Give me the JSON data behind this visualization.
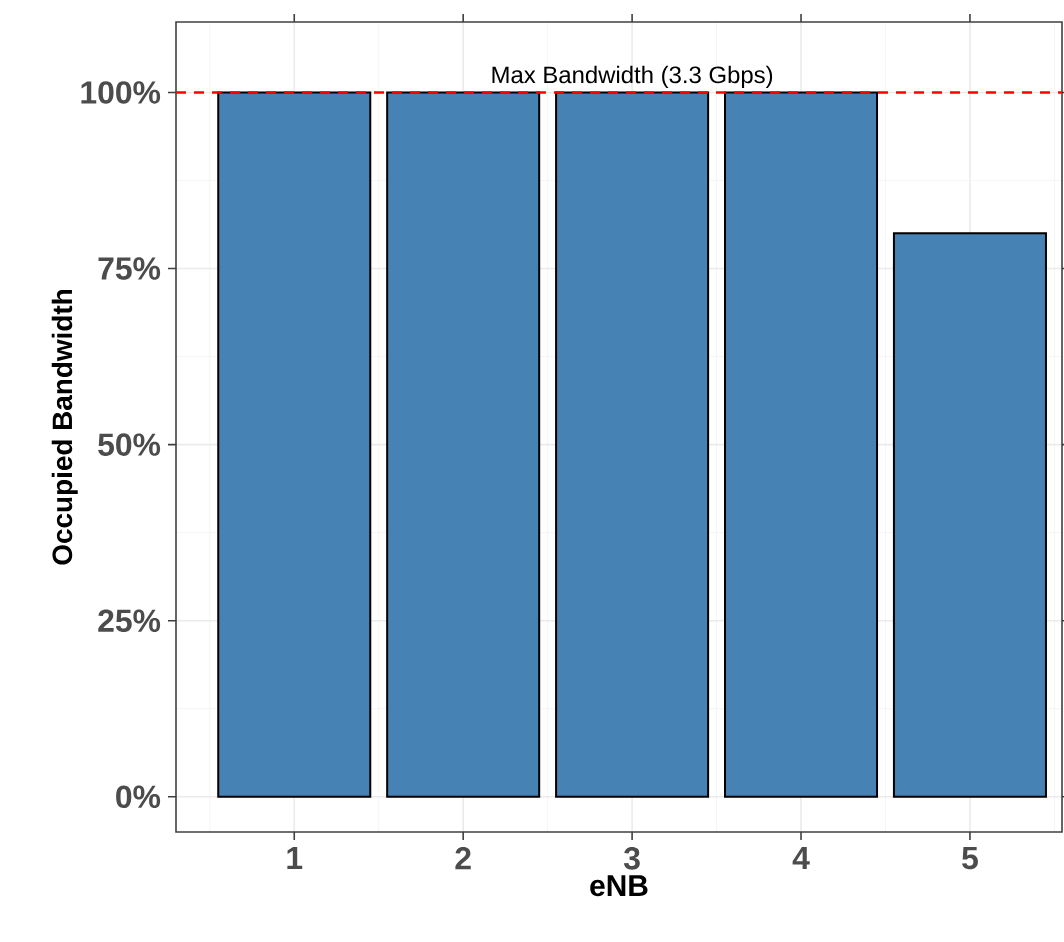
{
  "chart_data": {
    "type": "bar",
    "xlabel": "eNB",
    "ylabel": "Occupied Bandwidth",
    "categories": [
      "1",
      "2",
      "3",
      "4",
      "5"
    ],
    "values": [
      100,
      100,
      100,
      100,
      80
    ],
    "color": "#4682b4",
    "ylim": [
      -5,
      110
    ],
    "yticks": [
      {
        "value": 0,
        "label": "0%"
      },
      {
        "value": 25,
        "label": "25%"
      },
      {
        "value": 50,
        "label": "50%"
      },
      {
        "value": 75,
        "label": "75%"
      },
      {
        "value": 100,
        "label": "100%"
      }
    ],
    "grid": true,
    "ref_lines": [
      {
        "axis": "y",
        "value": 100,
        "label": "Max Bandwidth (3.3 Gbps)",
        "color": "#ff0000",
        "line_style": "dashed"
      }
    ]
  }
}
